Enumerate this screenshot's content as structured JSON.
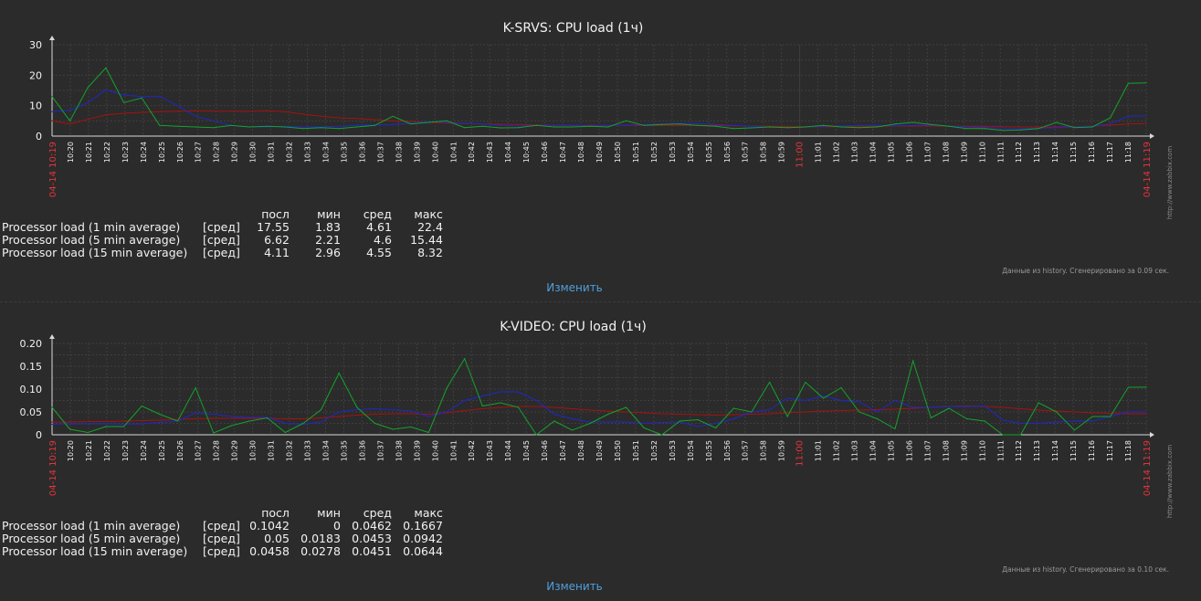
{
  "colors": {
    "background": "#2b2b2b",
    "grid": "#3f3f3f",
    "axis": "#d8d8d8",
    "text": "#f2f2f2",
    "red_label": "#e3343b",
    "link": "#4f9fdc",
    "series_1min": "#14a32a",
    "series_5min": "#1f28c9",
    "series_15min": "#a6120f"
  },
  "time_labels": [
    "10:20",
    "10:21",
    "10:22",
    "10:23",
    "10:24",
    "10:25",
    "10:26",
    "10:27",
    "10:28",
    "10:29",
    "10:30",
    "10:31",
    "10:32",
    "10:33",
    "10:34",
    "10:35",
    "10:36",
    "10:37",
    "10:38",
    "10:39",
    "10:40",
    "10:41",
    "10:42",
    "10:43",
    "10:44",
    "10:45",
    "10:46",
    "10:47",
    "10:48",
    "10:49",
    "10:50",
    "10:51",
    "10:52",
    "10:53",
    "10:54",
    "10:55",
    "10:56",
    "10:57",
    "10:58",
    "10:59",
    "11:00",
    "11:01",
    "11:02",
    "11:03",
    "11:04",
    "11:05",
    "11:06",
    "11:07",
    "11:08",
    "11:09",
    "11:10",
    "11:11",
    "11:12",
    "11:13",
    "11:14",
    "11:15",
    "11:16",
    "11:17",
    "11:18"
  ],
  "start_label": "04-14 10:19",
  "end_label": "04-14 11:19",
  "watermark": "http://www.zabbix.com",
  "legend_headers": {
    "last": "посл",
    "min": "мин",
    "avg": "сред",
    "max": "макс"
  },
  "edit_label": "Изменить",
  "charts": [
    {
      "title": "K-SRVS: CPU load (1ч)",
      "footnote": "Данные из history. Сгенерировано за 0.09 сек.",
      "legend": [
        {
          "name": "Processor load (1 min average)",
          "agg": "[сред]",
          "last": "17.55",
          "min": "1.83",
          "avg": "4.61",
          "max": "22.4"
        },
        {
          "name": "Processor load (5 min average)",
          "agg": "[сред]",
          "last": "6.62",
          "min": "2.21",
          "avg": "4.6",
          "max": "15.44"
        },
        {
          "name": "Processor load (15 min average)",
          "agg": "[сред]",
          "last": "4.11",
          "min": "2.96",
          "avg": "4.55",
          "max": "8.32"
        }
      ]
    },
    {
      "title": "K-VIDEO: CPU load (1ч)",
      "footnote": "Данные из history. Сгенерировано за 0.10 сек.",
      "legend": [
        {
          "name": "Processor load (1 min average)",
          "agg": "[сред]",
          "last": "0.1042",
          "min": "0",
          "avg": "0.0462",
          "max": "0.1667"
        },
        {
          "name": "Processor load (5 min average)",
          "agg": "[сред]",
          "last": "0.05",
          "min": "0.0183",
          "avg": "0.0453",
          "max": "0.0942"
        },
        {
          "name": "Processor load (15 min average)",
          "agg": "[сред]",
          "last": "0.0458",
          "min": "0.0278",
          "avg": "0.0451",
          "max": "0.0644"
        }
      ]
    }
  ],
  "chart_data": [
    {
      "type": "line",
      "title": "K-SRVS: CPU load (1ч)",
      "ylim": [
        0,
        30
      ],
      "yticks": [
        "0",
        "10",
        "20",
        "30"
      ],
      "x_range": [
        "04-14 10:19",
        "04-14 11:19"
      ],
      "series": [
        {
          "name": "Processor load (1 min average)",
          "color": "#14a32a",
          "values": [
            13,
            5,
            16,
            22.4,
            11,
            12.5,
            3.5,
            3.2,
            3,
            2.8,
            3.5,
            3,
            3.2,
            3,
            2.5,
            2.8,
            2.5,
            3,
            3.5,
            6.5,
            4,
            4.5,
            5,
            2.8,
            3.2,
            2.7,
            2.8,
            3.5,
            3,
            3,
            3.2,
            3,
            5,
            3.5,
            3.8,
            4,
            3.5,
            3.2,
            2.5,
            2.7,
            3,
            2.8,
            3,
            3.5,
            3,
            2.8,
            3,
            4,
            4.5,
            3.8,
            3.2,
            2.5,
            2.5,
            1.9,
            2,
            2.5,
            4.5,
            2.8,
            3,
            6,
            17.3,
            17.5
          ]
        },
        {
          "name": "Processor load (5 min average)",
          "color": "#1f28c9",
          "values": [
            8,
            8.5,
            11,
            15.2,
            13.5,
            13,
            13,
            10,
            6.5,
            5,
            3.5,
            3,
            3,
            3.2,
            3,
            3,
            3.2,
            3.5,
            3.7,
            3.8,
            4.2,
            4.7,
            4.5,
            4.2,
            4,
            3.5,
            3.3,
            3.5,
            3.5,
            3.5,
            3.4,
            3.5,
            3.6,
            3.8,
            4,
            4.2,
            4.1,
            3.8,
            3.5,
            3.2,
            3,
            2.8,
            3,
            3.2,
            3.3,
            3.5,
            3.5,
            3.4,
            3.5,
            3.6,
            3.3,
            3,
            2.8,
            2.6,
            2.4,
            2.6,
            2.8,
            3,
            3.2,
            4,
            6.5,
            6.62
          ]
        },
        {
          "name": "Processor load (15 min average)",
          "color": "#a6120f",
          "values": [
            5,
            4,
            5.5,
            7,
            7.5,
            7.8,
            8,
            8.2,
            8.3,
            8.2,
            8.2,
            8.1,
            8.3,
            8,
            7.2,
            6.5,
            6,
            5.8,
            5.4,
            5,
            4.8,
            4.5,
            4.3,
            4.1,
            4,
            3.9,
            3.8,
            3.7,
            3.6,
            3.5,
            3.5,
            3.5,
            3.5,
            3.5,
            3.5,
            3.5,
            3.5,
            3.5,
            3.4,
            3.3,
            3.2,
            3.2,
            3.1,
            3.1,
            3.1,
            3.2,
            3.2,
            3.3,
            3.3,
            3.3,
            3.3,
            3.2,
            3.2,
            3.1,
            3,
            3,
            3,
            3.1,
            3.3,
            3.6,
            4,
            4.11
          ]
        }
      ]
    },
    {
      "type": "line",
      "title": "K-VIDEO: CPU load (1ч)",
      "ylim": [
        0,
        0.2
      ],
      "yticks": [
        "0",
        "0.05",
        "0.10",
        "0.15",
        "0.20"
      ],
      "x_range": [
        "04-14 10:19",
        "04-14 11:19"
      ],
      "series": [
        {
          "name": "Processor load (1 min average)",
          "color": "#14a32a",
          "values": [
            0.06,
            0.012,
            0.005,
            0.018,
            0.018,
            0.063,
            0.045,
            0.03,
            0.103,
            0.004,
            0.02,
            0.03,
            0.037,
            0.005,
            0.025,
            0.055,
            0.135,
            0.06,
            0.025,
            0.012,
            0.017,
            0.005,
            0.102,
            0.1667,
            0.063,
            0.07,
            0.06,
            0,
            0.03,
            0.01,
            0.025,
            0.045,
            0.06,
            0.015,
            0,
            0.03,
            0.033,
            0.015,
            0.058,
            0.05,
            0.115,
            0.04,
            0.115,
            0.08,
            0.103,
            0.05,
            0.035,
            0.013,
            0.162,
            0.037,
            0.058,
            0.035,
            0.03,
            0,
            0,
            0.07,
            0.05,
            0.01,
            0.04,
            0.04,
            0.104,
            0.1042
          ]
        },
        {
          "name": "Processor load (5 min average)",
          "color": "#1f28c9",
          "values": [
            0.023,
            0.024,
            0.024,
            0.024,
            0.023,
            0.024,
            0.027,
            0.03,
            0.048,
            0.045,
            0.04,
            0.038,
            0.038,
            0.025,
            0.023,
            0.028,
            0.05,
            0.055,
            0.057,
            0.055,
            0.052,
            0.04,
            0.05,
            0.075,
            0.085,
            0.094,
            0.094,
            0.075,
            0.045,
            0.035,
            0.028,
            0.028,
            0.028,
            0.025,
            0.027,
            0.028,
            0.018,
            0.025,
            0.035,
            0.05,
            0.055,
            0.08,
            0.075,
            0.085,
            0.075,
            0.072,
            0.05,
            0.075,
            0.06,
            0.06,
            0.062,
            0.062,
            0.063,
            0.032,
            0.025,
            0.025,
            0.028,
            0.03,
            0.03,
            0.04,
            0.05,
            0.05
          ]
        },
        {
          "name": "Processor load (15 min average)",
          "color": "#a6120f",
          "values": [
            0.028,
            0.028,
            0.029,
            0.029,
            0.03,
            0.031,
            0.032,
            0.034,
            0.035,
            0.036,
            0.036,
            0.036,
            0.036,
            0.035,
            0.035,
            0.037,
            0.04,
            0.043,
            0.045,
            0.046,
            0.046,
            0.045,
            0.048,
            0.053,
            0.057,
            0.06,
            0.062,
            0.062,
            0.06,
            0.057,
            0.054,
            0.052,
            0.05,
            0.048,
            0.046,
            0.045,
            0.044,
            0.043,
            0.044,
            0.045,
            0.046,
            0.048,
            0.05,
            0.052,
            0.053,
            0.054,
            0.055,
            0.056,
            0.058,
            0.06,
            0.062,
            0.063,
            0.062,
            0.06,
            0.057,
            0.054,
            0.052,
            0.05,
            0.048,
            0.047,
            0.046,
            0.0458
          ]
        }
      ]
    }
  ]
}
